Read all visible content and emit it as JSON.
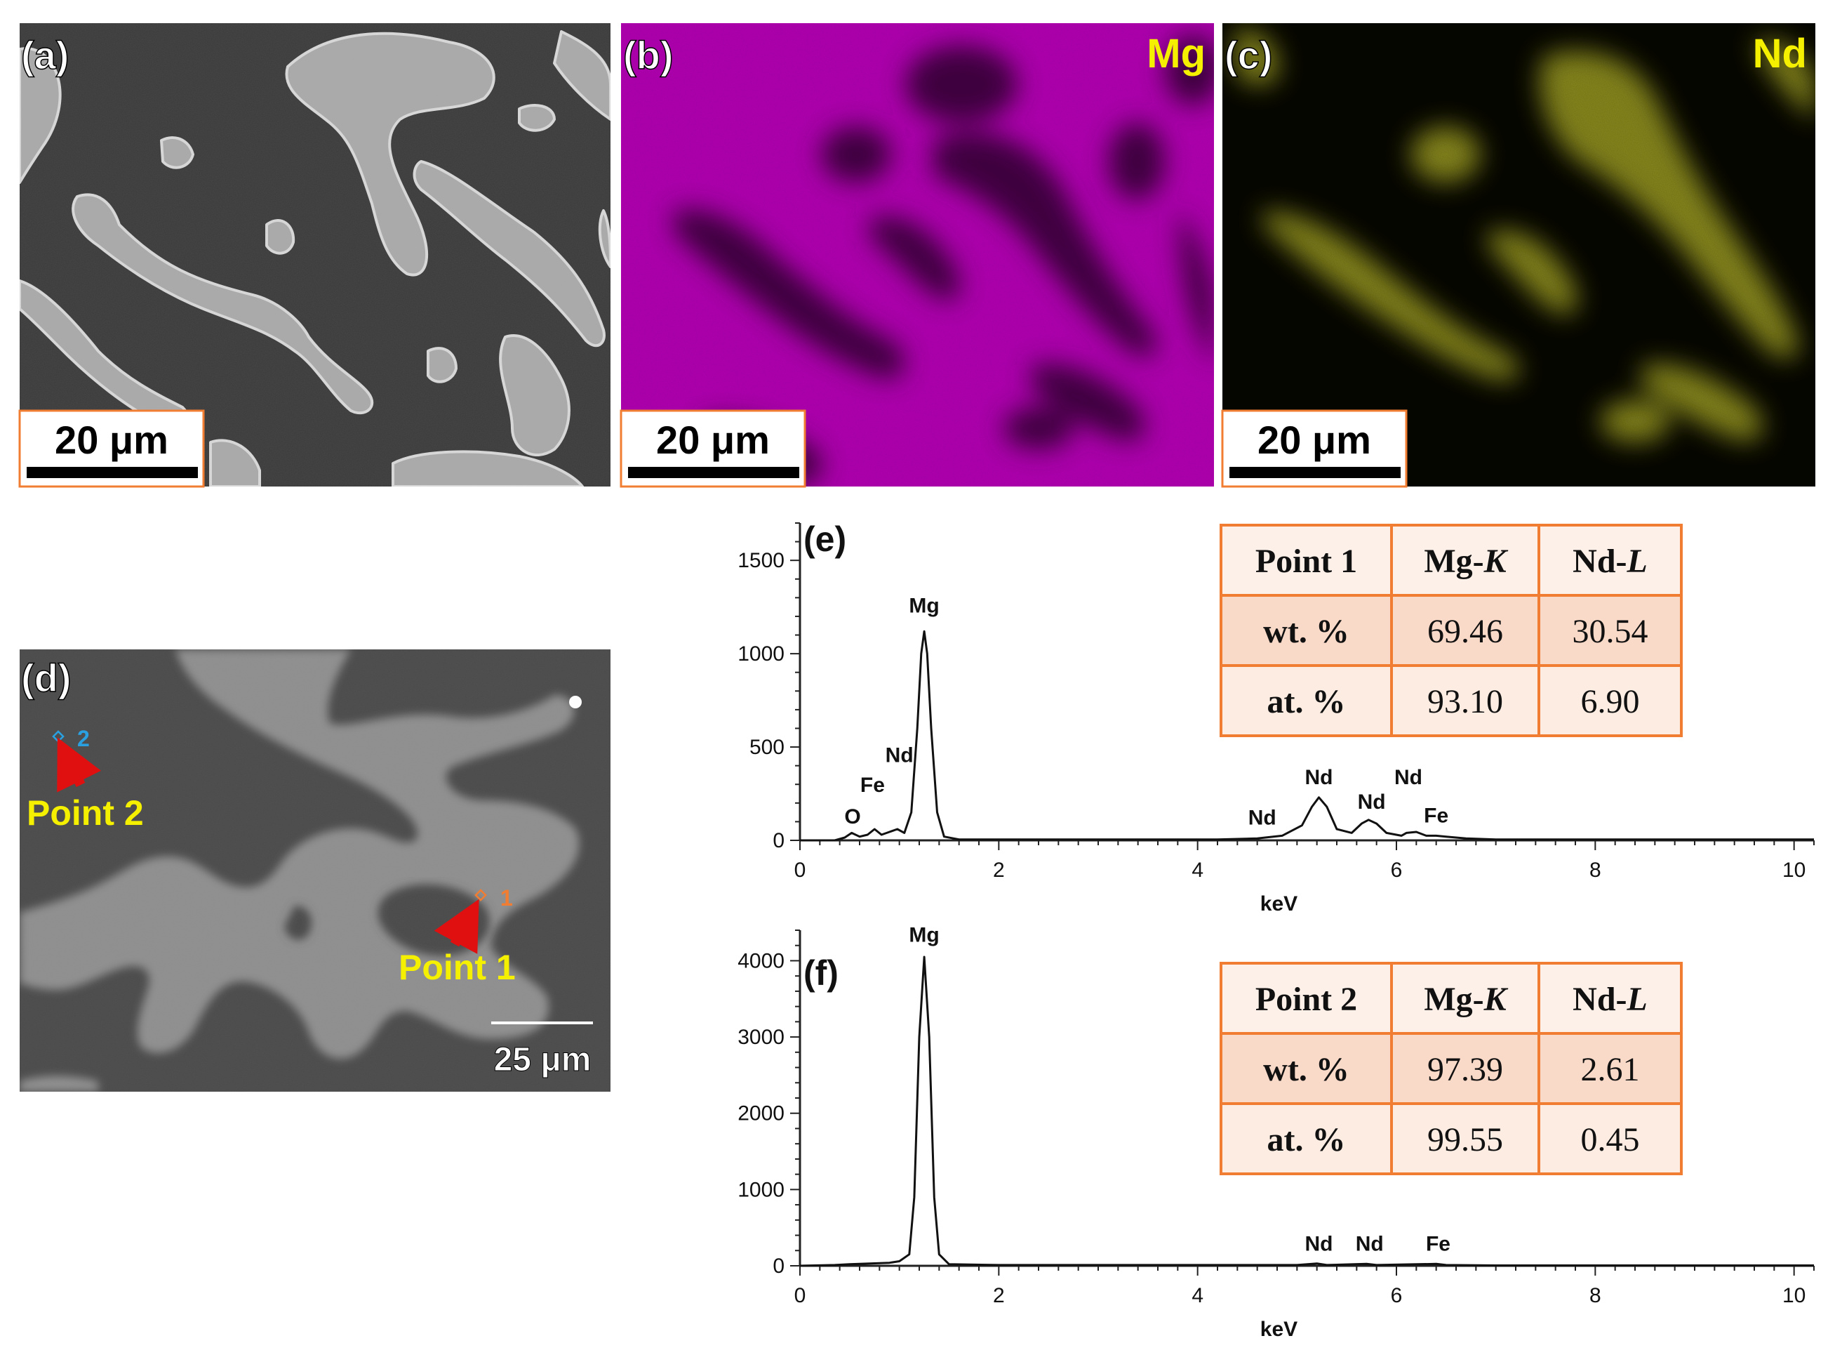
{
  "panels": {
    "a": {
      "label": "(a)",
      "scale_bar": "20 μm"
    },
    "b": {
      "label": "(b)",
      "element": "Mg",
      "scale_bar": "20 μm"
    },
    "c": {
      "label": "(c)",
      "element": "Nd",
      "scale_bar": "20 μm"
    },
    "d": {
      "label": "(d)",
      "scale_bar": "25 μm",
      "point1_label": "Point 1",
      "point1_marker": "1",
      "point2_label": "Point 2",
      "point2_marker": "2"
    }
  },
  "colors": {
    "mg_map": "#b400b4",
    "nd_map": "#b4b41e",
    "label_yellow": "#f5f000",
    "arrow_red": "#e01010",
    "table_border": "#f07d32",
    "table_header_bg": "#fdf0e8",
    "table_wt_bg": "#f9d9c8",
    "table_at_bg": "#fdece2"
  },
  "chart_data": [
    {
      "panel": "(e)",
      "type": "line",
      "xlabel": "keV",
      "ylabel": "",
      "xlim": [
        0,
        10.2
      ],
      "ylim": [
        0,
        1700
      ],
      "xticks": [
        0,
        2,
        4,
        6,
        8,
        10
      ],
      "yticks": [
        0,
        500,
        1000,
        1500
      ],
      "series": [
        {
          "x": [
            0.0,
            0.35,
            0.45,
            0.52,
            0.6,
            0.68,
            0.75,
            0.82,
            0.9,
            0.98,
            1.05,
            1.12,
            1.18,
            1.22,
            1.25,
            1.28,
            1.32,
            1.38,
            1.45,
            1.6,
            2.0,
            2.5,
            3.0,
            3.3,
            3.8,
            4.2,
            4.6,
            4.85,
            5.05,
            5.15,
            5.22,
            5.3,
            5.4,
            5.55,
            5.65,
            5.72,
            5.8,
            5.9,
            6.05,
            6.1,
            6.2,
            6.3,
            6.4,
            6.5,
            6.7,
            7.0,
            8.0,
            9.0,
            10.2
          ],
          "y": [
            0,
            0,
            15,
            40,
            20,
            30,
            60,
            30,
            45,
            60,
            40,
            150,
            600,
            1000,
            1120,
            1000,
            600,
            150,
            20,
            5,
            5,
            5,
            5,
            5,
            5,
            5,
            10,
            25,
            80,
            180,
            230,
            180,
            60,
            40,
            90,
            110,
            90,
            40,
            25,
            40,
            45,
            25,
            25,
            20,
            10,
            5,
            5,
            5,
            5
          ]
        }
      ],
      "peak_labels": [
        {
          "text": "Mg",
          "x": 1.25,
          "y": 1220
        },
        {
          "text": "Nd",
          "x": 1.0,
          "y": 420
        },
        {
          "text": "Fe",
          "x": 0.73,
          "y": 260
        },
        {
          "text": "O",
          "x": 0.53,
          "y": 90
        },
        {
          "text": "Nd",
          "x": 4.65,
          "y": 85
        },
        {
          "text": "Nd",
          "x": 5.22,
          "y": 300
        },
        {
          "text": "Nd",
          "x": 5.75,
          "y": 170
        },
        {
          "text": "Nd",
          "x": 6.12,
          "y": 300
        },
        {
          "text": "Fe",
          "x": 6.4,
          "y": 95
        }
      ],
      "table": {
        "header": [
          "Point 1",
          "Mg-K",
          "Nd-L"
        ],
        "rows": [
          [
            "wt. %",
            "69.46",
            "30.54"
          ],
          [
            "at. %",
            "93.10",
            "6.90"
          ]
        ]
      }
    },
    {
      "panel": "(f)",
      "type": "line",
      "xlabel": "keV",
      "ylabel": "",
      "xlim": [
        0,
        10.2
      ],
      "ylim": [
        0,
        4400
      ],
      "xticks": [
        0,
        2,
        4,
        6,
        8,
        10
      ],
      "yticks": [
        0,
        1000,
        2000,
        3000,
        4000
      ],
      "series": [
        {
          "x": [
            0.0,
            0.35,
            0.5,
            0.7,
            0.9,
            1.0,
            1.1,
            1.15,
            1.2,
            1.25,
            1.3,
            1.35,
            1.4,
            1.5,
            2.0,
            3.0,
            4.0,
            5.0,
            5.2,
            5.3,
            5.7,
            5.8,
            6.4,
            6.5,
            7.0,
            8.0,
            9.0,
            10.2
          ],
          "y": [
            0,
            10,
            20,
            30,
            40,
            60,
            150,
            900,
            3000,
            4050,
            3000,
            900,
            150,
            20,
            10,
            10,
            10,
            10,
            30,
            10,
            25,
            10,
            25,
            10,
            5,
            5,
            5,
            5
          ]
        }
      ],
      "peak_labels": [
        {
          "text": "Mg",
          "x": 1.25,
          "y": 4250
        },
        {
          "text": "Nd",
          "x": 5.22,
          "y": 200
        },
        {
          "text": "Nd",
          "x": 5.73,
          "y": 200
        },
        {
          "text": "Fe",
          "x": 6.42,
          "y": 200
        }
      ],
      "table": {
        "header": [
          "Point 2",
          "Mg-K",
          "Nd-L"
        ],
        "rows": [
          [
            "wt. %",
            "97.39",
            "2.61"
          ],
          [
            "at. %",
            "99.55",
            "0.45"
          ]
        ]
      }
    }
  ]
}
